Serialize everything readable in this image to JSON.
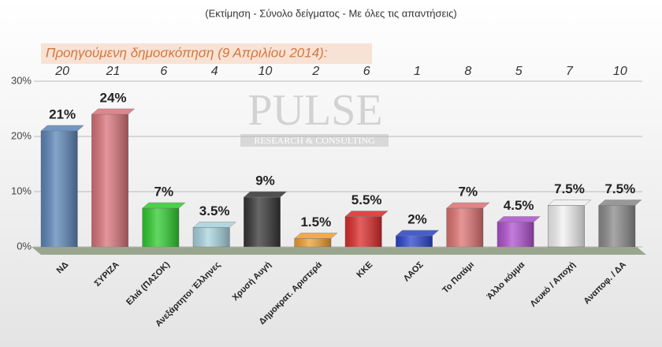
{
  "chart_data": {
    "type": "bar",
    "subtitle": "(Εκτίμηση - Σύνολο δείγματος - Με όλες τις απαντήσεις)",
    "previous_label": "Προηγούμενη δημοσκόπηση (9 Απριλίου 2014):",
    "previous_values": [
      20,
      21,
      6,
      4,
      10,
      2,
      6,
      1,
      8,
      5,
      7,
      10
    ],
    "watermark": "PULSE",
    "watermark_sub": "RESEARCH & CONSULTING",
    "categories": [
      "ΝΔ",
      "ΣΥΡΙΖΑ",
      "Ελιά (ΠΑΣΟΚ)",
      "Ανεξάρτητοι Έλληνες",
      "Χρυσή Αυγή",
      "Δημοκρατ. Αριστερά",
      "ΚΚΕ",
      "ΛΑΟΣ",
      "Το Ποτάμι",
      "Άλλο κόμμα",
      "Λευκό / Αποχή",
      "Αναποφ. / ΔΑ"
    ],
    "values": [
      21,
      24,
      7,
      3.5,
      9,
      1.5,
      5.5,
      2,
      7,
      4.5,
      7.5,
      7.5
    ],
    "value_labels": [
      "21%",
      "24%",
      "7%",
      "3.5%",
      "9%",
      "1.5%",
      "5.5%",
      "2%",
      "7%",
      "4.5%",
      "7.5%",
      "7.5%"
    ],
    "colors": [
      "#5b86b8",
      "#d9737a",
      "#2fcc2f",
      "#a9d4e0",
      "#353535",
      "#f0a030",
      "#dd2a2a",
      "#2a45cc",
      "#e07272",
      "#b050d0",
      "#f2f2f2",
      "#8a8a8a"
    ],
    "ylim": [
      0,
      30
    ],
    "yticks": [
      {
        "value": 0,
        "label": "0%"
      },
      {
        "value": 10,
        "label": "10%"
      },
      {
        "value": 20,
        "label": "20%"
      },
      {
        "value": 30,
        "label": "30%"
      }
    ],
    "grid": true
  }
}
